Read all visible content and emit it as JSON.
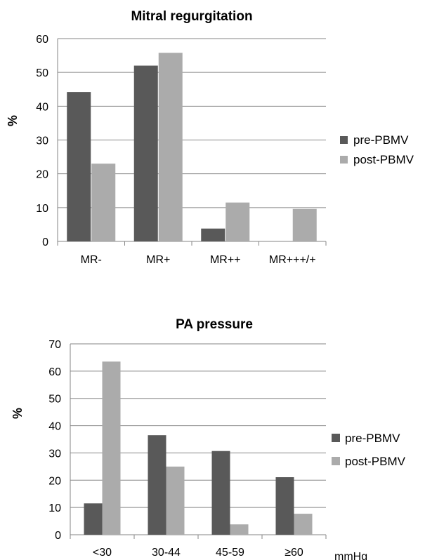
{
  "colors": {
    "pre": "#595959",
    "post": "#ababab",
    "grid": "#868686",
    "axis": "#868686"
  },
  "chart_data": [
    {
      "type": "bar",
      "title": "Mitral regurgitation",
      "ylabel": "%",
      "xlabel": "",
      "ylim": [
        0,
        60
      ],
      "yticks": [
        0,
        10,
        20,
        30,
        40,
        50,
        60
      ],
      "grid": true,
      "legend": "right",
      "categories": [
        "MR-",
        "MR+",
        "MR++",
        "MR+++/+"
      ],
      "series": [
        {
          "name": "pre-PBMV",
          "values": [
            44.2,
            52,
            3.8,
            0
          ]
        },
        {
          "name": "post-PBMV",
          "values": [
            23,
            55.8,
            11.5,
            9.6
          ]
        }
      ]
    },
    {
      "type": "bar",
      "title": "PA pressure",
      "ylabel": "%",
      "xlabel": "mmHg",
      "ylim": [
        0,
        70
      ],
      "yticks": [
        0,
        10,
        20,
        30,
        40,
        50,
        60,
        70
      ],
      "grid": true,
      "legend": "right",
      "categories": [
        "<30",
        "30-44",
        "45-59",
        "≥60"
      ],
      "series": [
        {
          "name": "pre-PBMV",
          "values": [
            11.5,
            36.5,
            30.7,
            21.1
          ]
        },
        {
          "name": "post-PBMV",
          "values": [
            63.5,
            25,
            3.8,
            7.7
          ]
        }
      ]
    }
  ]
}
